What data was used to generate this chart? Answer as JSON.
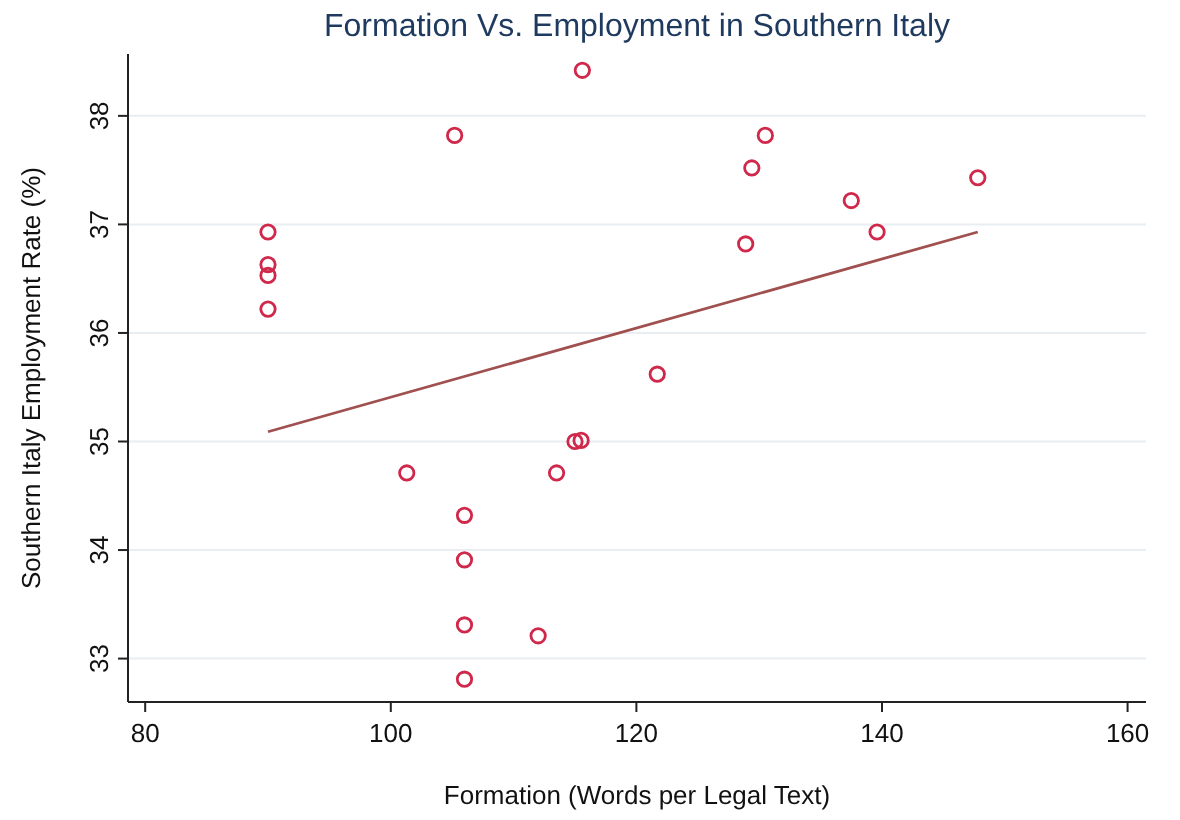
{
  "chart_data": {
    "type": "scatter",
    "title": "Formation Vs. Employment in Southern Italy",
    "xlabel": "Formation (Words per Legal Text)",
    "ylabel": "Southern Italy Employment Rate (%)",
    "xlim": [
      78.6,
      161.5
    ],
    "xticks": [
      80,
      100,
      120,
      140,
      160
    ],
    "ylim": [
      32.6,
      38.57
    ],
    "yticks": [
      33,
      34,
      35,
      36,
      37,
      38
    ],
    "grid": "y",
    "marker": "circle",
    "series": [
      {
        "color": "#d0284a",
        "x": [
          90,
          90,
          90,
          90,
          105.2,
          115.6,
          101.3,
          106,
          106,
          106,
          106,
          112,
          113.5,
          115.5,
          115.0,
          121.7,
          128.9,
          129.4,
          130.5,
          137.5,
          139.6,
          147.8
        ],
        "values": [
          36.93,
          36.63,
          36.53,
          36.22,
          37.82,
          38.42,
          34.71,
          34.32,
          33.91,
          33.31,
          32.81,
          33.21,
          34.71,
          35.01,
          35.0,
          35.62,
          36.82,
          37.52,
          37.82,
          37.22,
          36.93,
          37.43
        ]
      },
      {
        "type": "line",
        "color": "#a0504f",
        "marker": "none",
        "x": [
          90,
          147.8
        ],
        "values": [
          35.09,
          36.93
        ]
      }
    ]
  }
}
